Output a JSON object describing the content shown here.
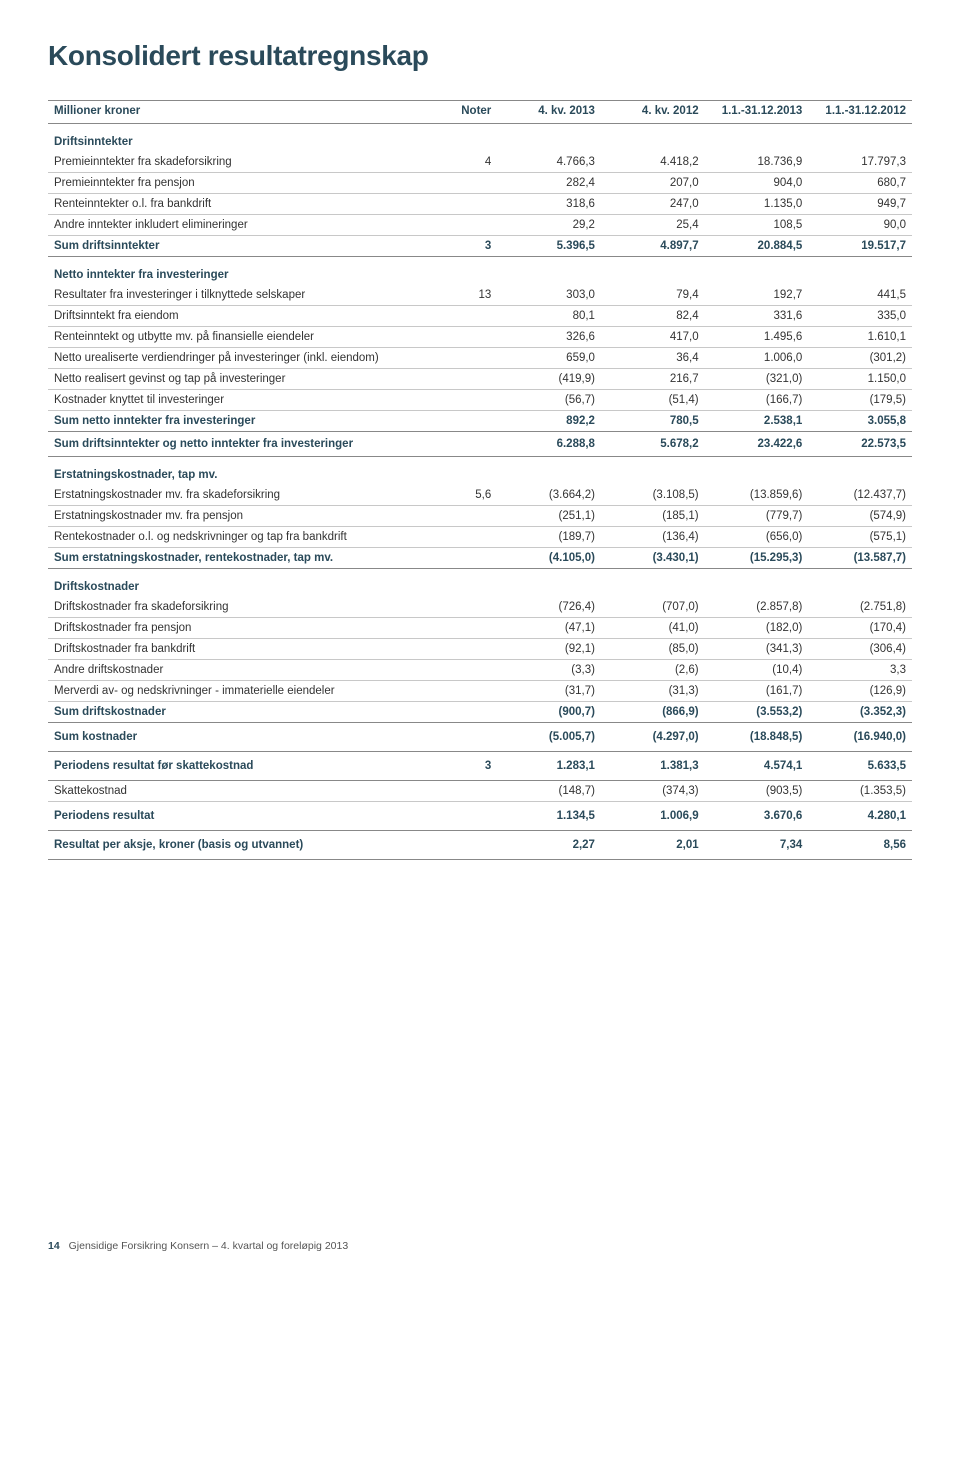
{
  "title": "Konsolidert resultatregnskap",
  "columns": [
    "Millioner kroner",
    "Noter",
    "4. kv. 2013",
    "4. kv. 2012",
    "1.1.-31.12.2013",
    "1.1.-31.12.2012"
  ],
  "style": {
    "title_color": "#2a4a5a",
    "title_fontsize": 28,
    "body_fontsize": 11.5,
    "border_light": "#c8c8c8",
    "border_heavy": "#888888",
    "page_bg": "#ffffff"
  },
  "col_widths_pct": [
    45,
    7,
    12,
    12,
    12,
    12
  ],
  "sections": [
    {
      "header": "Driftsinntekter",
      "rows": [
        {
          "label": "Premieinntekter fra skadeforsikring",
          "note": "4",
          "v": [
            "4.766,3",
            "4.418,2",
            "18.736,9",
            "17.797,3"
          ]
        },
        {
          "label": "Premieinntekter fra pensjon",
          "note": "",
          "v": [
            "282,4",
            "207,0",
            "904,0",
            "680,7"
          ]
        },
        {
          "label": "Renteinntekter o.l. fra bankdrift",
          "note": "",
          "v": [
            "318,6",
            "247,0",
            "1.135,0",
            "949,7"
          ]
        },
        {
          "label": "Andre inntekter inkludert elimineringer",
          "note": "",
          "v": [
            "29,2",
            "25,4",
            "108,5",
            "90,0"
          ]
        }
      ],
      "sum": {
        "label": "Sum driftsinntekter",
        "note": "3",
        "v": [
          "5.396,5",
          "4.897,7",
          "20.884,5",
          "19.517,7"
        ]
      }
    },
    {
      "header": "Netto inntekter fra investeringer",
      "rows": [
        {
          "label": "Resultater fra investeringer i tilknyttede selskaper",
          "note": "13",
          "v": [
            "303,0",
            "79,4",
            "192,7",
            "441,5"
          ]
        },
        {
          "label": "Driftsinntekt fra eiendom",
          "note": "",
          "v": [
            "80,1",
            "82,4",
            "331,6",
            "335,0"
          ]
        },
        {
          "label": "Renteinntekt og utbytte mv. på finansielle eiendeler",
          "note": "",
          "v": [
            "326,6",
            "417,0",
            "1.495,6",
            "1.610,1"
          ]
        },
        {
          "label": "Netto urealiserte verdiendringer på investeringer (inkl. eiendom)",
          "note": "",
          "v": [
            "659,0",
            "36,4",
            "1.006,0",
            "(301,2)"
          ]
        },
        {
          "label": "Netto realisert gevinst og tap på investeringer",
          "note": "",
          "v": [
            "(419,9)",
            "216,7",
            "(321,0)",
            "1.150,0"
          ]
        },
        {
          "label": "Kostnader knyttet til investeringer",
          "note": "",
          "v": [
            "(56,7)",
            "(51,4)",
            "(166,7)",
            "(179,5)"
          ]
        }
      ],
      "sum": {
        "label": "Sum netto inntekter fra investeringer",
        "note": "",
        "v": [
          "892,2",
          "780,5",
          "2.538,1",
          "3.055,8"
        ]
      }
    }
  ],
  "grand1": {
    "label": "Sum driftsinntekter og netto inntekter fra investeringer",
    "note": "",
    "v": [
      "6.288,8",
      "5.678,2",
      "23.422,6",
      "22.573,5"
    ]
  },
  "sections2": [
    {
      "header": "Erstatningskostnader, tap mv.",
      "rows": [
        {
          "label": "Erstatningskostnader mv. fra skadeforsikring",
          "note": "5,6",
          "v": [
            "(3.664,2)",
            "(3.108,5)",
            "(13.859,6)",
            "(12.437,7)"
          ]
        },
        {
          "label": "Erstatningskostnader mv. fra pensjon",
          "note": "",
          "v": [
            "(251,1)",
            "(185,1)",
            "(779,7)",
            "(574,9)"
          ]
        },
        {
          "label": "Rentekostnader o.l. og nedskrivninger og tap fra bankdrift",
          "note": "",
          "v": [
            "(189,7)",
            "(136,4)",
            "(656,0)",
            "(575,1)"
          ]
        }
      ],
      "sum": {
        "label": "Sum erstatningskostnader, rentekostnader, tap mv.",
        "note": "",
        "v": [
          "(4.105,0)",
          "(3.430,1)",
          "(15.295,3)",
          "(13.587,7)"
        ]
      }
    },
    {
      "header": "Driftskostnader",
      "rows": [
        {
          "label": "Driftskostnader fra skadeforsikring",
          "note": "",
          "v": [
            "(726,4)",
            "(707,0)",
            "(2.857,8)",
            "(2.751,8)"
          ]
        },
        {
          "label": "Driftskostnader fra pensjon",
          "note": "",
          "v": [
            "(47,1)",
            "(41,0)",
            "(182,0)",
            "(170,4)"
          ]
        },
        {
          "label": "Driftskostnader fra bankdrift",
          "note": "",
          "v": [
            "(92,1)",
            "(85,0)",
            "(341,3)",
            "(306,4)"
          ]
        },
        {
          "label": "Andre driftskostnader",
          "note": "",
          "v": [
            "(3,3)",
            "(2,6)",
            "(10,4)",
            "3,3"
          ]
        },
        {
          "label": "Merverdi av- og nedskrivninger - immaterielle eiendeler",
          "note": "",
          "v": [
            "(31,7)",
            "(31,3)",
            "(161,7)",
            "(126,9)"
          ]
        }
      ],
      "sum": {
        "label": "Sum driftskostnader",
        "note": "",
        "v": [
          "(900,7)",
          "(866,9)",
          "(3.553,2)",
          "(3.352,3)"
        ]
      }
    }
  ],
  "totals": [
    {
      "label": "Sum kostnader",
      "note": "",
      "v": [
        "(5.005,7)",
        "(4.297,0)",
        "(18.848,5)",
        "(16.940,0)"
      ],
      "cls": "sum-alone"
    },
    {
      "label": "Periodens resultat før skattekostnad",
      "note": "3",
      "v": [
        "1.283,1",
        "1.381,3",
        "4.574,1",
        "5.633,5"
      ],
      "cls": "sum-alone"
    }
  ],
  "tax": {
    "label": "Skattekostnad",
    "note": "",
    "v": [
      "(148,7)",
      "(374,3)",
      "(903,5)",
      "(1.353,5)"
    ]
  },
  "totals2": [
    {
      "label": "Periodens resultat",
      "note": "",
      "v": [
        "1.134,5",
        "1.006,9",
        "3.670,6",
        "4.280,1"
      ],
      "cls": "sum-alone"
    },
    {
      "label": "Resultat per aksje, kroner (basis og utvannet)",
      "note": "",
      "v": [
        "2,27",
        "2,01",
        "7,34",
        "8,56"
      ],
      "cls": "sum-alone"
    }
  ],
  "footer": {
    "page": "14",
    "text": "Gjensidige Forsikring Konsern – 4. kvartal og foreløpig 2013"
  }
}
